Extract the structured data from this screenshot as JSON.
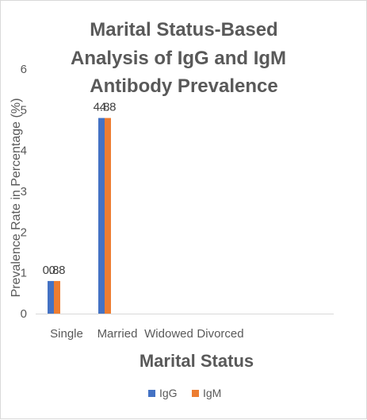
{
  "chart_data": {
    "type": "bar",
    "title_lines": [
      "Marital Status-Based",
      "Analysis of IgG and IgM",
      "Antibody Prevalence"
    ],
    "xlabel": "Marital Status",
    "ylabel": "Prevalence Rate in Percentage (%)",
    "categories": [
      "Single",
      "Married",
      "Widowed",
      "Divorced"
    ],
    "series": [
      {
        "name": "IgG",
        "color": "#4472c4",
        "values": [
          0.8,
          4.8,
          0,
          0
        ],
        "labels": [
          "0.8",
          "4.8",
          "",
          ""
        ]
      },
      {
        "name": "IgM",
        "color": "#ed7d31",
        "values": [
          0.8,
          4.8,
          0,
          0
        ],
        "labels": [
          "0.8",
          "4.8",
          "",
          ""
        ]
      }
    ],
    "ylim": [
      0,
      6
    ],
    "yticks": [
      0,
      1,
      2,
      3,
      4,
      5,
      6
    ],
    "ytick_labels": [
      "0",
      "1",
      "2",
      "3",
      "4",
      "5",
      "6"
    ],
    "grid": false,
    "legend_position": "bottom"
  }
}
